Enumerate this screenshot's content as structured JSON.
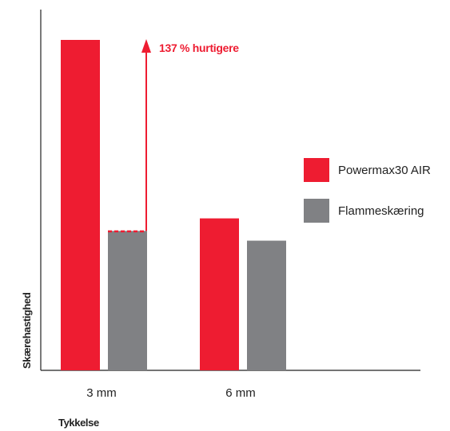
{
  "chart_data": {
    "type": "bar",
    "categories": [
      "3 mm",
      "6 mm"
    ],
    "series": [
      {
        "name": "Powermax30 AIR",
        "values": [
          2.37,
          1.09
        ]
      },
      {
        "name": "Flammeskæring",
        "values": [
          1.0,
          0.93
        ]
      }
    ],
    "xlabel": "Tykkelse",
    "ylabel": "Skærehastighed",
    "ylim": [
      0,
      2.7
    ],
    "grid": false,
    "legend_position": "right",
    "annotation": {
      "text": "137 % hurtigere",
      "category": "3 mm",
      "from": 1.0,
      "to": 2.37
    },
    "colors": {
      "Powermax30 AIR": "#ee1c31",
      "Flammeskæring": "#808184",
      "axis": "#222222"
    }
  }
}
